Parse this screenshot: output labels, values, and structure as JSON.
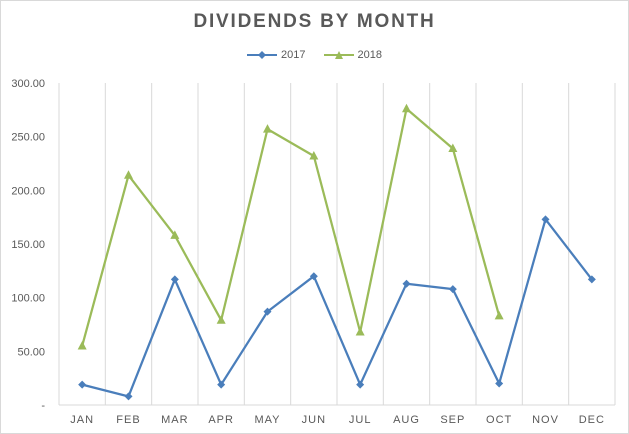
{
  "chart_data": {
    "type": "line",
    "title": "DIVIDENDS BY MONTH",
    "categories": [
      "JAN",
      "FEB",
      "MAR",
      "APR",
      "MAY",
      "JUN",
      "JUL",
      "AUG",
      "SEP",
      "OCT",
      "NOV",
      "DEC"
    ],
    "series": [
      {
        "name": "2017",
        "color": "#4a7ebb",
        "marker": "diamond",
        "values": [
          19,
          8,
          117,
          19,
          87,
          120,
          19,
          113,
          108,
          20,
          173,
          117
        ]
      },
      {
        "name": "2018",
        "color": "#9bbb59",
        "marker": "triangle",
        "values": [
          55,
          214,
          158,
          79,
          257,
          232,
          68,
          276,
          239,
          83,
          null,
          null
        ]
      }
    ],
    "y_ticks": [
      "-",
      "50.00",
      "100.00",
      "150.00",
      "200.00",
      "250.00",
      "300.00"
    ],
    "ylim": [
      0,
      300
    ],
    "grid": "vertical",
    "legend_position": "top"
  }
}
